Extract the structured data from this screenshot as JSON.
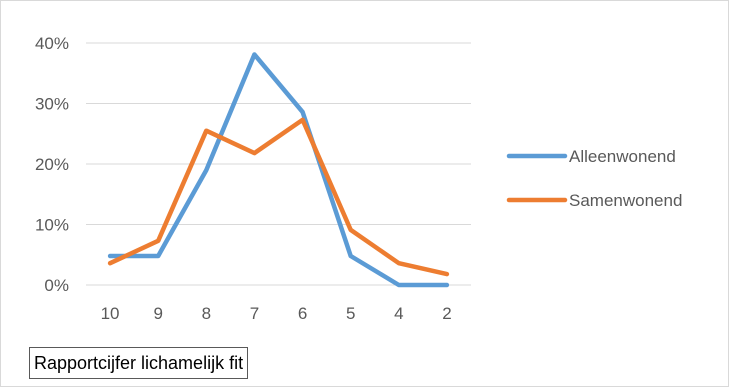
{
  "chart_data": {
    "type": "line",
    "title": "",
    "xlabel": "Rapportcijfer lichamelijk fit",
    "ylabel": "",
    "categories": [
      "10",
      "9",
      "8",
      "7",
      "6",
      "5",
      "4",
      "2"
    ],
    "ylim": [
      0,
      40
    ],
    "yticks": [
      "0%",
      "10%",
      "20%",
      "30%",
      "40%"
    ],
    "grid": true,
    "legend_position": "right",
    "series": [
      {
        "name": "Alleenwonend",
        "color": "#5b9bd5",
        "values": [
          4.8,
          4.8,
          19,
          38.1,
          28.6,
          4.8,
          0,
          0
        ]
      },
      {
        "name": "Samenwonend",
        "color": "#ed7d31",
        "values": [
          3.6,
          7.3,
          25.5,
          21.8,
          27.3,
          9.1,
          3.6,
          1.8
        ]
      }
    ]
  }
}
